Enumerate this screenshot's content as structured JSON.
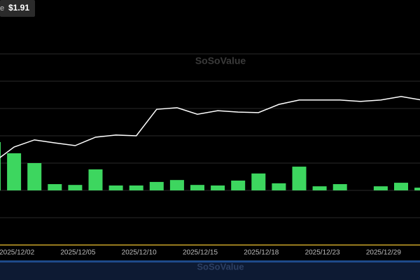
{
  "chart_data": {
    "type": "bar-line",
    "stat_label": "e",
    "stat_value": "$1.91",
    "watermark": "SoSoValue",
    "categories": [
      null,
      "2025/12/02",
      null,
      null,
      "2025/12/05",
      null,
      null,
      "2025/12/10",
      null,
      null,
      "2025/12/15",
      null,
      null,
      "2025/12/18",
      null,
      null,
      "2025/12/23",
      null,
      null,
      "2025/12/29",
      null,
      null
    ],
    "series": [
      {
        "name": "bars",
        "color": "#3dd65f",
        "values": [
          1.77,
          1.36,
          1.0,
          0.23,
          0.2,
          0.77,
          0.18,
          0.18,
          0.31,
          0.38,
          0.2,
          0.18,
          0.36,
          0.62,
          0.26,
          0.87,
          0.15,
          0.23,
          0,
          0.15,
          0.28,
          0.1
        ]
      },
      {
        "name": "line",
        "color": "#ffffff",
        "values": [
          1.03,
          1.59,
          1.85,
          1.74,
          1.64,
          1.95,
          2.03,
          2.0,
          2.97,
          3.03,
          2.79,
          2.92,
          2.87,
          2.85,
          3.15,
          3.31,
          3.31,
          3.31,
          3.26,
          3.31,
          3.44,
          3.31
        ]
      }
    ],
    "ylim": [
      -2,
      6
    ]
  }
}
